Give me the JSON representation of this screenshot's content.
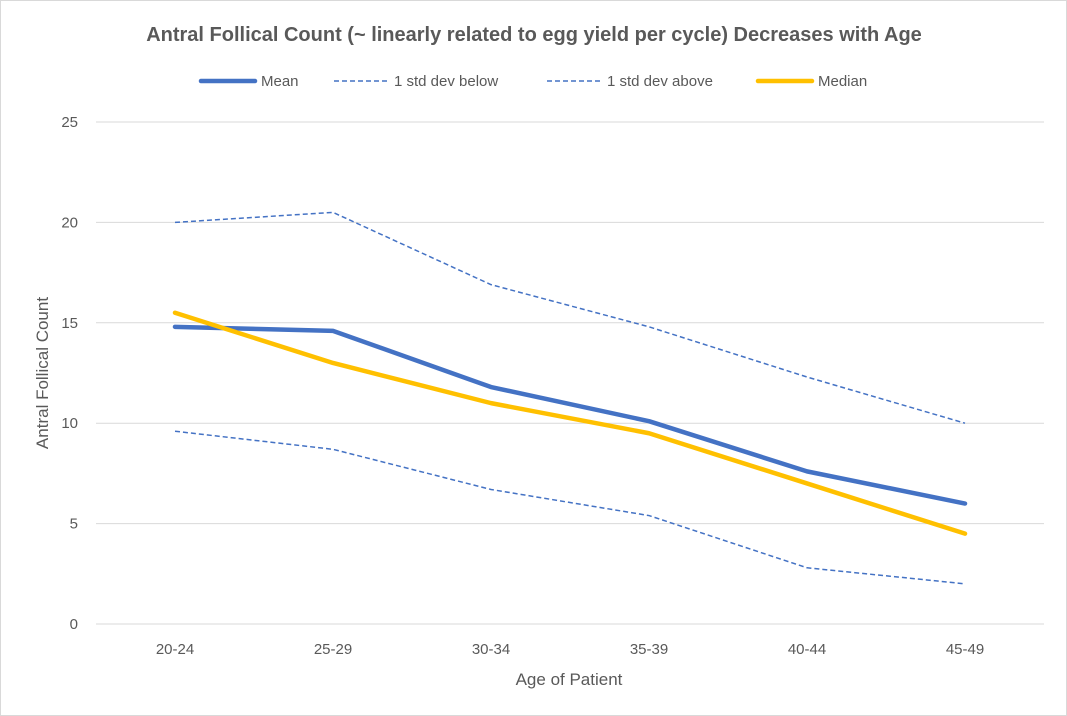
{
  "chart_data": {
    "type": "line",
    "title": "Antral Follical Count (~ linearly related to egg yield per cycle) Decreases with Age",
    "xlabel": "Age of Patient",
    "ylabel": "Antral Follical Count",
    "categories": [
      "20-24",
      "25-29",
      "30-34",
      "35-39",
      "40-44",
      "45-49"
    ],
    "ylim": [
      0,
      25
    ],
    "yticks": [
      0,
      5,
      10,
      15,
      20,
      25
    ],
    "grid": true,
    "legend_position": "top",
    "series": [
      {
        "name": "Mean",
        "values": [
          14.8,
          14.6,
          11.8,
          10.1,
          7.6,
          6.0
        ],
        "color": "#4472C4",
        "style": "solid"
      },
      {
        "name": "1 std dev below",
        "values": [
          9.6,
          8.7,
          6.7,
          5.4,
          2.8,
          2.0
        ],
        "color": "#4472C4",
        "style": "dashed"
      },
      {
        "name": "1 std dev above",
        "values": [
          20.0,
          20.5,
          16.9,
          14.8,
          12.3,
          10.0
        ],
        "color": "#4472C4",
        "style": "dashed"
      },
      {
        "name": "Median",
        "values": [
          15.5,
          13.0,
          11.0,
          9.5,
          7.0,
          4.5
        ],
        "color": "#FFC000",
        "style": "solid"
      }
    ]
  }
}
